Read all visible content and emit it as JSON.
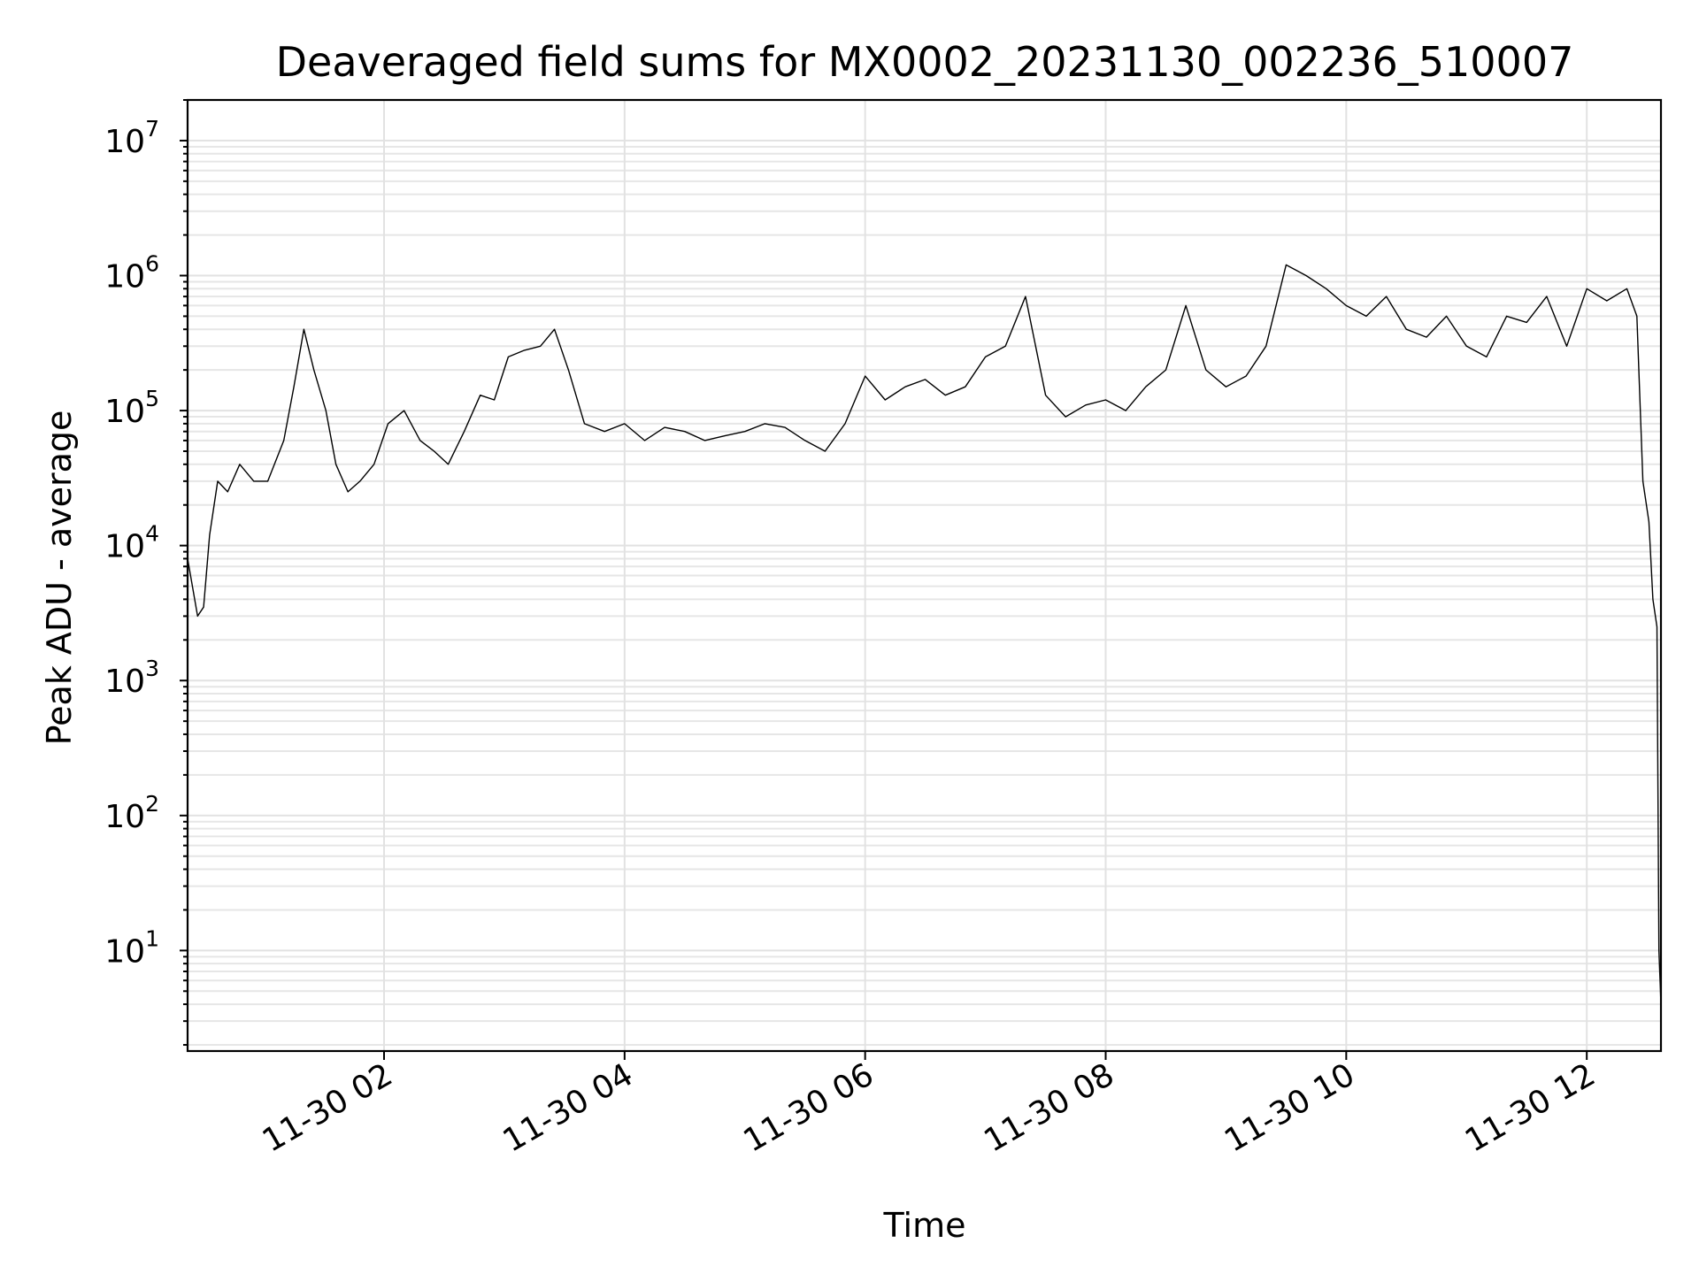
{
  "chart_data": {
    "type": "line",
    "title": "Deaveraged field sums for MX0002_20231130_002236_510007",
    "xlabel": "Time",
    "ylabel": "Peak ADU - average",
    "yscale": "log",
    "ylim": [
      1.8,
      20000000
    ],
    "xlim": [
      "2023-11-30 00:22",
      "2023-11-30 12:37"
    ],
    "grid": true,
    "x_ticks": [
      "11-30 02",
      "11-30 04",
      "11-30 06",
      "11-30 08",
      "11-30 10",
      "11-30 12"
    ],
    "y_ticks": [
      {
        "base": "10",
        "exp": "1"
      },
      {
        "base": "10",
        "exp": "2"
      },
      {
        "base": "10",
        "exp": "3"
      },
      {
        "base": "10",
        "exp": "4"
      },
      {
        "base": "10",
        "exp": "5"
      },
      {
        "base": "10",
        "exp": "6"
      },
      {
        "base": "10",
        "exp": "7"
      }
    ],
    "series": [
      {
        "color": "#000000",
        "x": [
          "2023-11-30 00:22",
          "2023-11-30 00:27",
          "2023-11-30 00:30",
          "2023-11-30 00:33",
          "2023-11-30 00:37",
          "2023-11-30 00:42",
          "2023-11-30 00:48",
          "2023-11-30 00:55",
          "2023-11-30 01:02",
          "2023-11-30 01:10",
          "2023-11-30 01:15",
          "2023-11-30 01:20",
          "2023-11-30 01:25",
          "2023-11-30 01:31",
          "2023-11-30 01:36",
          "2023-11-30 01:42",
          "2023-11-30 01:48",
          "2023-11-30 01:55",
          "2023-11-30 02:02",
          "2023-11-30 02:10",
          "2023-11-30 02:18",
          "2023-11-30 02:25",
          "2023-11-30 02:32",
          "2023-11-30 02:40",
          "2023-11-30 02:48",
          "2023-11-30 02:55",
          "2023-11-30 03:02",
          "2023-11-30 03:10",
          "2023-11-30 03:18",
          "2023-11-30 03:25",
          "2023-11-30 03:32",
          "2023-11-30 03:40",
          "2023-11-30 03:50",
          "2023-11-30 04:00",
          "2023-11-30 04:10",
          "2023-11-30 04:20",
          "2023-11-30 04:30",
          "2023-11-30 04:40",
          "2023-11-30 04:50",
          "2023-11-30 05:00",
          "2023-11-30 05:10",
          "2023-11-30 05:20",
          "2023-11-30 05:30",
          "2023-11-30 05:40",
          "2023-11-30 05:50",
          "2023-11-30 06:00",
          "2023-11-30 06:10",
          "2023-11-30 06:20",
          "2023-11-30 06:30",
          "2023-11-30 06:40",
          "2023-11-30 06:50",
          "2023-11-30 07:00",
          "2023-11-30 07:10",
          "2023-11-30 07:20",
          "2023-11-30 07:30",
          "2023-11-30 07:40",
          "2023-11-30 07:50",
          "2023-11-30 08:00",
          "2023-11-30 08:10",
          "2023-11-30 08:20",
          "2023-11-30 08:30",
          "2023-11-30 08:40",
          "2023-11-30 08:50",
          "2023-11-30 09:00",
          "2023-11-30 09:10",
          "2023-11-30 09:20",
          "2023-11-30 09:30",
          "2023-11-30 09:40",
          "2023-11-30 09:50",
          "2023-11-30 10:00",
          "2023-11-30 10:10",
          "2023-11-30 10:20",
          "2023-11-30 10:30",
          "2023-11-30 10:40",
          "2023-11-30 10:50",
          "2023-11-30 11:00",
          "2023-11-30 11:10",
          "2023-11-30 11:20",
          "2023-11-30 11:30",
          "2023-11-30 11:40",
          "2023-11-30 11:50",
          "2023-11-30 12:00",
          "2023-11-30 12:10",
          "2023-11-30 12:20",
          "2023-11-30 12:25",
          "2023-11-30 12:28",
          "2023-11-30 12:31",
          "2023-11-30 12:33",
          "2023-11-30 12:35",
          "2023-11-30 12:36",
          "2023-11-30 12:37"
        ],
        "y": [
          8000,
          3000,
          3500,
          12000,
          30000,
          25000,
          40000,
          30000,
          30000,
          60000,
          150000,
          400000,
          200000,
          100000,
          40000,
          25000,
          30000,
          40000,
          80000,
          100000,
          60000,
          50000,
          40000,
          70000,
          130000,
          120000,
          250000,
          280000,
          300000,
          400000,
          200000,
          80000,
          70000,
          80000,
          60000,
          75000,
          70000,
          60000,
          65000,
          70000,
          80000,
          75000,
          60000,
          50000,
          80000,
          180000,
          120000,
          150000,
          170000,
          130000,
          150000,
          250000,
          300000,
          700000,
          130000,
          90000,
          110000,
          120000,
          100000,
          150000,
          200000,
          600000,
          200000,
          150000,
          180000,
          300000,
          1200000,
          1000000,
          800000,
          600000,
          500000,
          700000,
          400000,
          350000,
          500000,
          300000,
          250000,
          500000,
          450000,
          700000,
          300000,
          800000,
          650000,
          800000,
          500000,
          30000,
          15000,
          4000,
          2500,
          10,
          4
        ]
      }
    ]
  }
}
